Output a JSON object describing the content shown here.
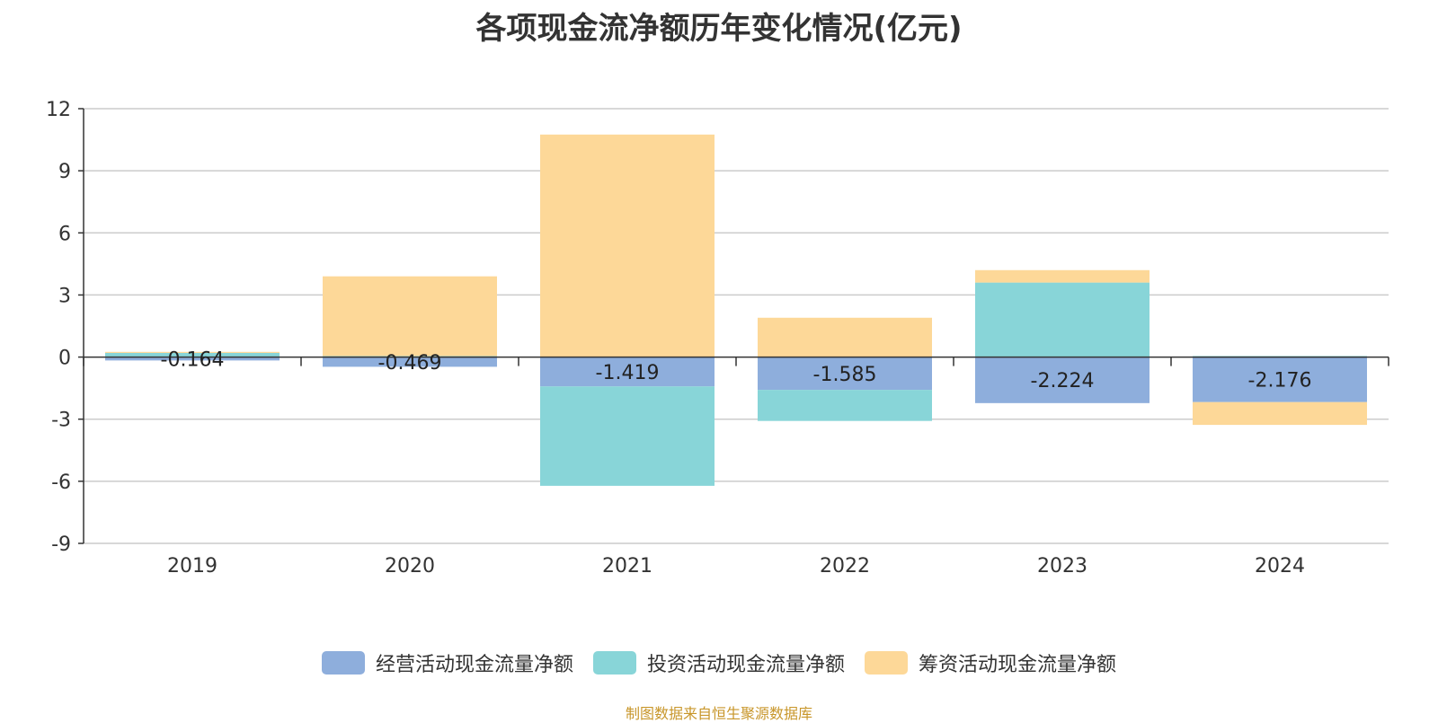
{
  "title": "各项现金流净额历年变化情况(亿元)",
  "source": "制图数据来自恒生聚源数据库",
  "chart_data": {
    "type": "bar",
    "stacked": true,
    "categories": [
      "2019",
      "2020",
      "2021",
      "2022",
      "2023",
      "2024"
    ],
    "ylim": [
      -9,
      12
    ],
    "yticks": [
      12,
      9,
      6,
      3,
      0,
      -3,
      -6,
      -9
    ],
    "grid": true,
    "legend_position": "bottom",
    "series": [
      {
        "name": "经营活动现金流量净额",
        "color": "#8eaedc",
        "values": [
          -0.164,
          -0.469,
          -1.419,
          -1.585,
          -2.224,
          -2.176
        ],
        "labels": true
      },
      {
        "name": "投资活动现金流量净额",
        "color": "#88d5d8",
        "values": [
          0.2,
          0.05,
          -4.8,
          -1.5,
          3.6,
          0.05
        ],
        "labels": false
      },
      {
        "name": "筹资活动现金流量净额",
        "color": "#fdd898",
        "values": [
          0.05,
          3.85,
          10.75,
          1.9,
          0.6,
          -1.1
        ],
        "labels": false
      }
    ]
  }
}
